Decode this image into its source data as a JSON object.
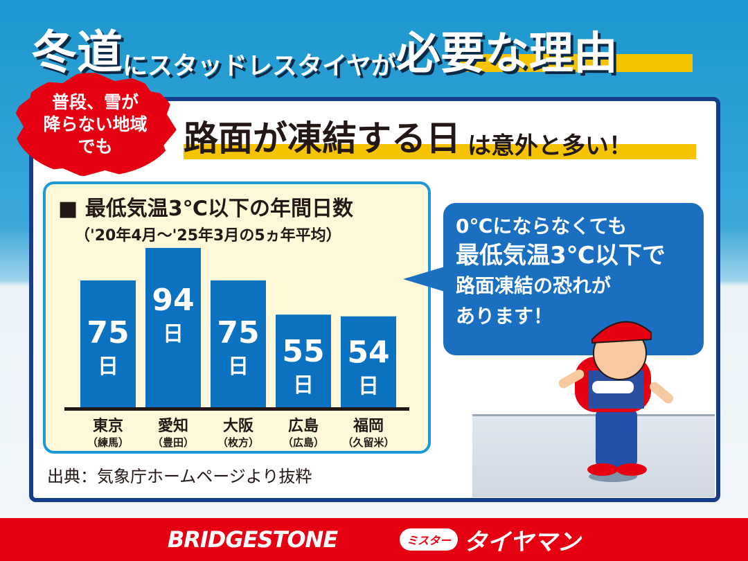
{
  "header": {
    "title_a": "冬道",
    "title_b": "にスタッドレスタイヤが",
    "title_c": "必要な理由"
  },
  "badge": {
    "lines": [
      "普段、雪が",
      "降らない地域",
      "でも"
    ]
  },
  "subtitle": {
    "main": "路面が凍結する日",
    "rest": "は意外と多い！"
  },
  "bubble": {
    "line1": "0℃にならなくても",
    "line2": "最低気温3℃以下で",
    "line3": "路面凍結の恐れが",
    "line4": "あります！"
  },
  "source": "出典：気象庁ホームページより抜粋",
  "footer": {
    "brand1": "BRIDGESTONE",
    "brand2_pill": "ミスター",
    "brand2": "タイヤマン"
  },
  "colors": {
    "bar": "#0a72c0",
    "accent": "#f5c400",
    "red": "#e50012",
    "blue": "#1c97cf"
  },
  "chart_data": {
    "type": "bar",
    "title": "■ 最低気温3℃以下の年間日数",
    "subtitle": "（'20年4月～'25年3月の5ヵ年平均）",
    "categories": [
      "東京",
      "愛知",
      "大阪",
      "広島",
      "福岡"
    ],
    "category_sublabels": [
      "（練馬）",
      "（豊田）",
      "（枚方）",
      "（広島）",
      "（久留米）"
    ],
    "values": [
      75,
      94,
      75,
      55,
      54
    ],
    "value_unit": "日",
    "ylim": [
      0,
      94
    ],
    "grid": false
  }
}
